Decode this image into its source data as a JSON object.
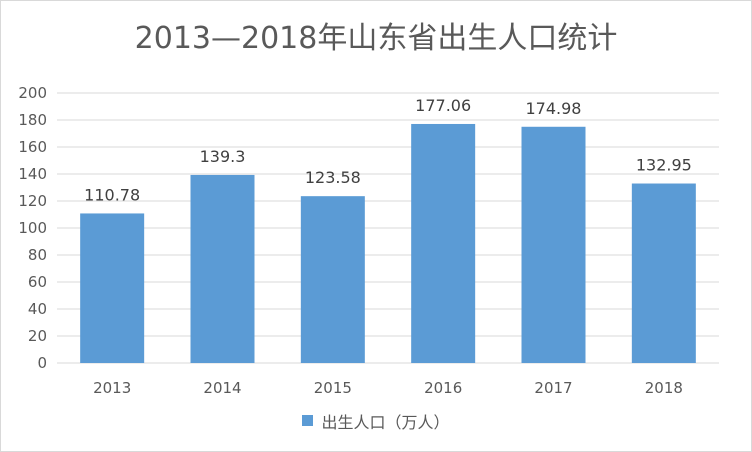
{
  "chart_data": {
    "type": "bar",
    "title": "2013—2018年山东省出生人口统计",
    "categories": [
      "2013",
      "2014",
      "2015",
      "2016",
      "2017",
      "2018"
    ],
    "series": [
      {
        "name": "出生人口（万人）",
        "values": [
          110.78,
          139.3,
          123.58,
          177.06,
          174.98,
          132.95
        ],
        "data_labels": [
          "110.78",
          "139.3",
          "123.58",
          "177.06",
          "174.98",
          "132.95"
        ]
      }
    ],
    "ylim": [
      0,
      200
    ],
    "yticks": [
      "0",
      "20",
      "40",
      "60",
      "80",
      "100",
      "120",
      "140",
      "160",
      "180",
      "200"
    ],
    "grid": true,
    "legend_position": "bottom",
    "colors": {
      "bar": "#5b9bd5",
      "grid": "#d9d9d9",
      "text": "#595959"
    }
  }
}
